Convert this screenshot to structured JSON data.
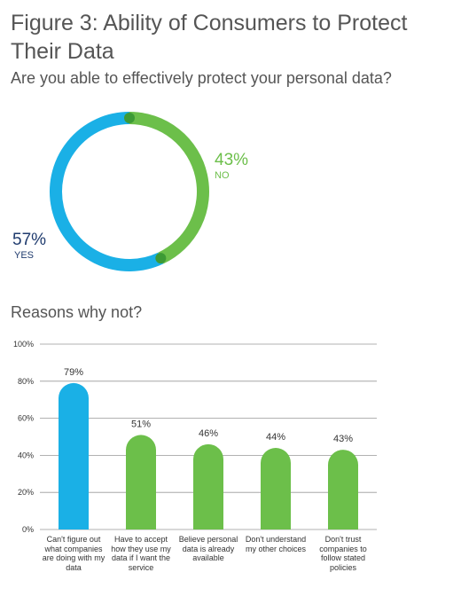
{
  "chart_data": [
    {
      "type": "pie",
      "title": "Figure 3: Ability of Consumers to Protect Their Data",
      "subtitle": "Are you able to effectively protect your personal data?",
      "categories": [
        "NO",
        "YES"
      ],
      "values": [
        43,
        57
      ],
      "value_labels": [
        "43%",
        "57%"
      ],
      "colors": [
        "#6cbf4a",
        "#1ab0e6"
      ],
      "label_colors": [
        "#6cbf4a",
        "#1f3b6e"
      ]
    },
    {
      "type": "bar",
      "title": "Reasons why not?",
      "categories": [
        "Can't figure out what companies are doing with my data",
        "Have to accept how they use my data if I want the service",
        "Believe personal data is already available",
        "Don't understand my other choices",
        "Don't trust companies to follow stated policies"
      ],
      "values": [
        79,
        51,
        46,
        44,
        43
      ],
      "value_labels": [
        "79%",
        "51%",
        "46%",
        "44%",
        "43%"
      ],
      "colors": [
        "#1ab0e6",
        "#6cbf4a",
        "#6cbf4a",
        "#6cbf4a",
        "#6cbf4a"
      ],
      "ylim": [
        0,
        100
      ],
      "yticks": [
        {
          "value": 0,
          "label": "0%"
        },
        {
          "value": 20,
          "label": "20%"
        },
        {
          "value": 40,
          "label": "40%"
        },
        {
          "value": 60,
          "label": "60%"
        },
        {
          "value": 80,
          "label": "80%"
        },
        {
          "value": 100,
          "label": "100%"
        }
      ],
      "grid": true
    }
  ]
}
